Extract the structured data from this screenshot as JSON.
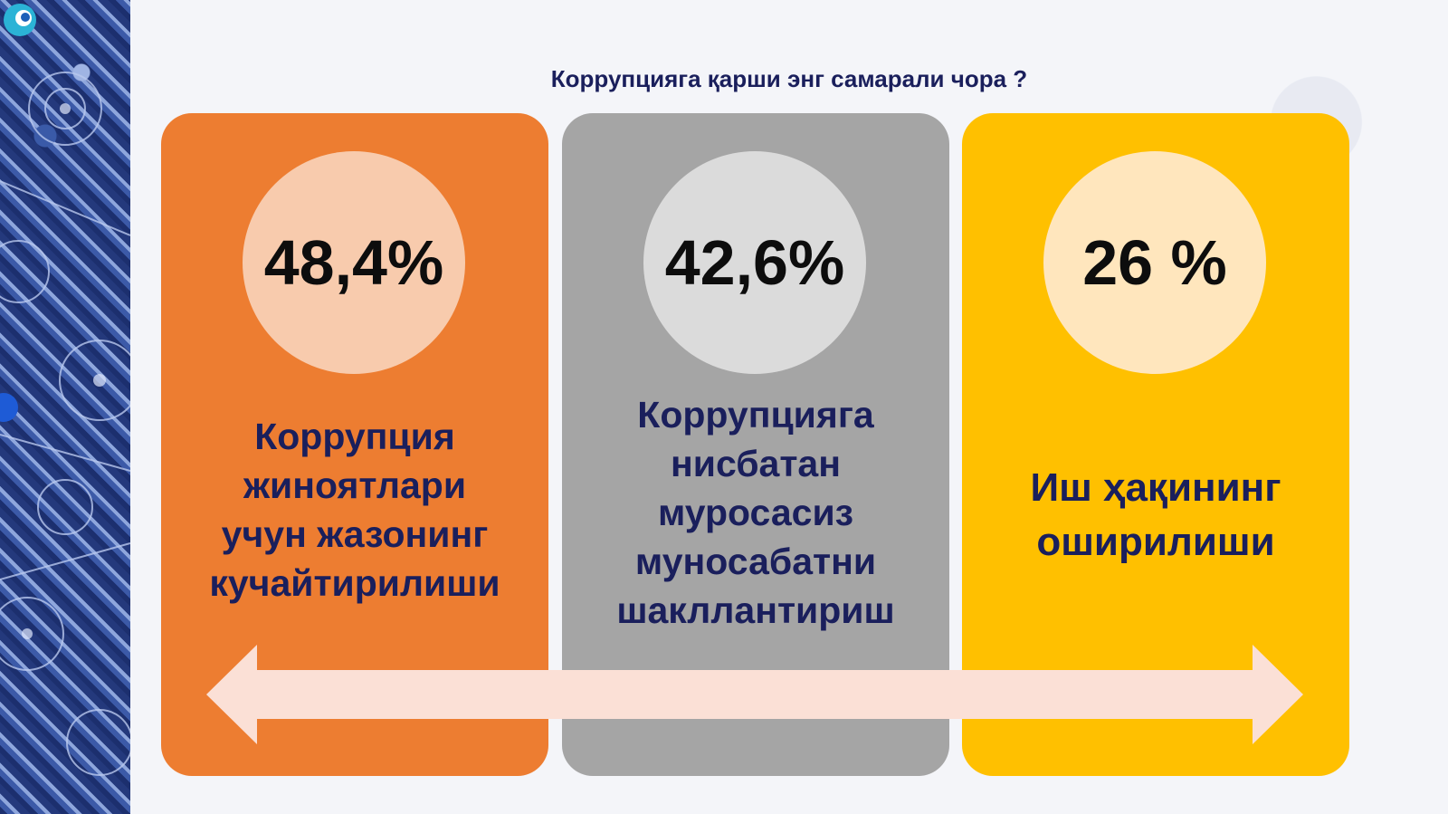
{
  "slide": {
    "title": "Коррупцияга қарши энг самарали чора ?"
  },
  "cards": [
    {
      "percent": "48,4%",
      "lines": [
        "Коррупция",
        "жиноятлари",
        "учун жазонинг",
        "кучайтирилиши"
      ],
      "color": "#ed7d31"
    },
    {
      "percent": "42,6%",
      "lines": [
        "Коррупцияга",
        "нисбатан",
        "муросасиз",
        "муносабатни",
        "шакллантириш"
      ],
      "color": "#a5a5a5"
    },
    {
      "percent": "26 %",
      "lines": [
        "Иш ҳақининг",
        "оширилиши"
      ],
      "color": "#ffc000"
    }
  ],
  "arrow": {
    "color": "#fbe0d6"
  },
  "ornament": {
    "accent": "#1c2f6e"
  }
}
